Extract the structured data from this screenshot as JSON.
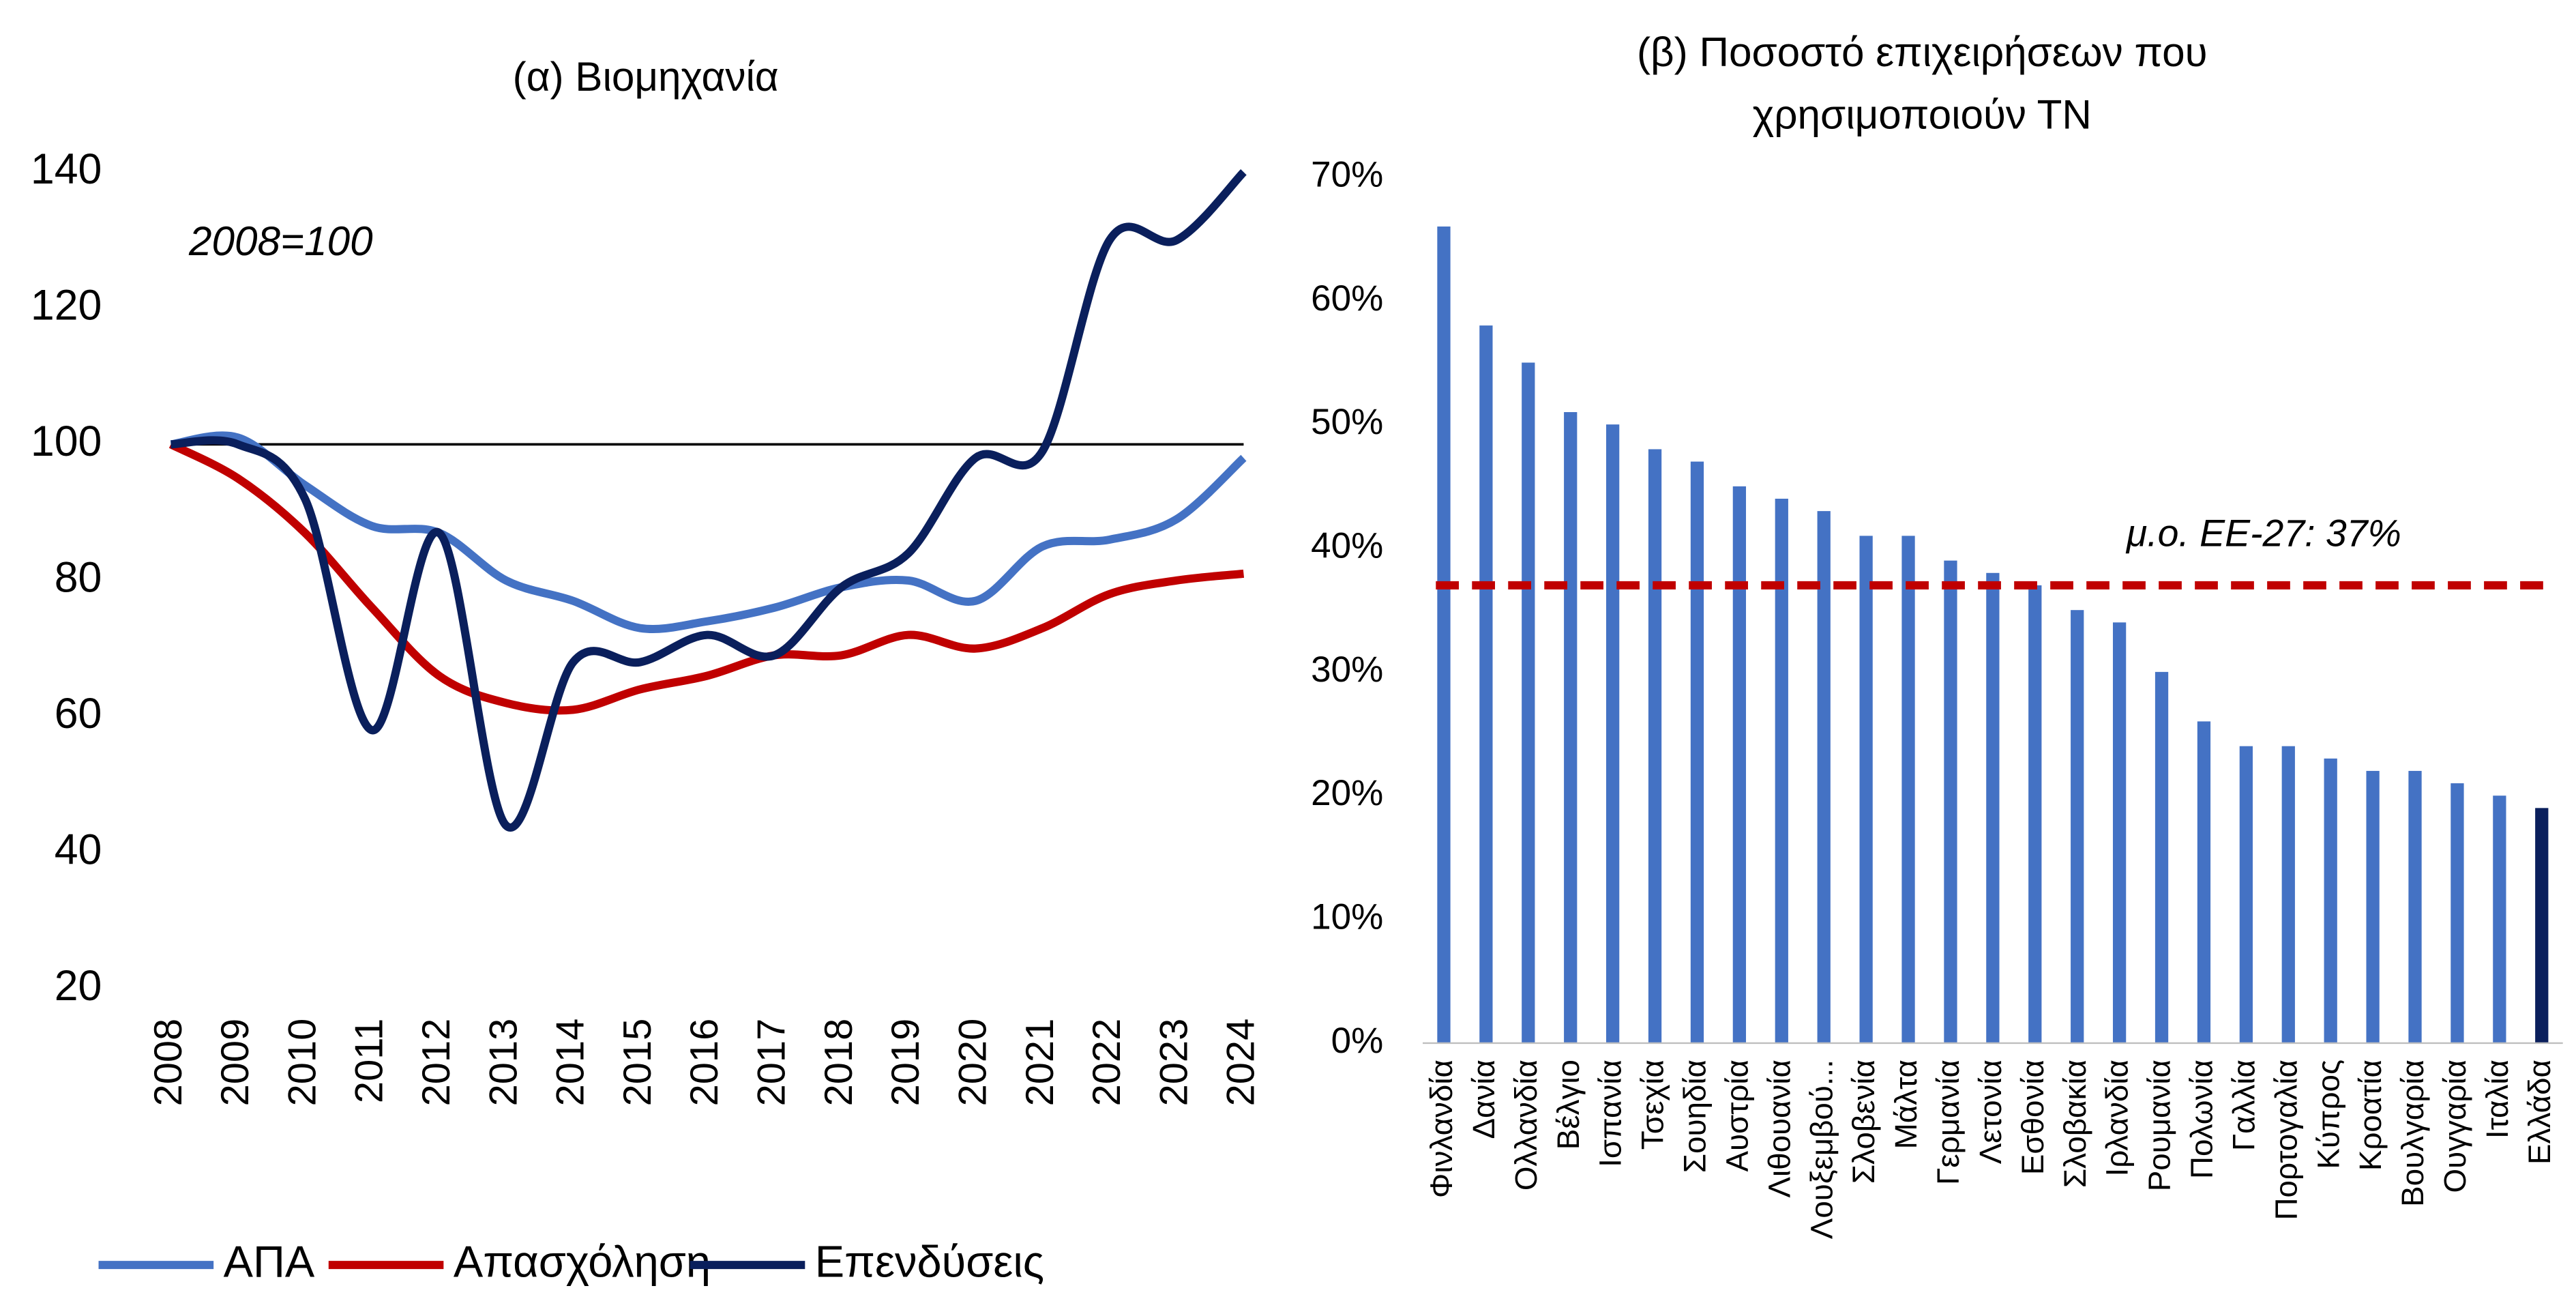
{
  "chart_data": [
    {
      "type": "line",
      "title": "(α) Βιομηχανία",
      "annotation": "2008=100",
      "categories": [
        "2008",
        "2009",
        "2010",
        "2011",
        "2012",
        "2013",
        "2014",
        "2015",
        "2016",
        "2017",
        "2018",
        "2019",
        "2020",
        "2021",
        "2022",
        "2023",
        "2024"
      ],
      "series": [
        {
          "name": "ΑΠΑ",
          "color": "#4472c4",
          "values": [
            100,
            101,
            94,
            88,
            87,
            80,
            77,
            73,
            74,
            76,
            79,
            80,
            77,
            85,
            86,
            89,
            98
          ]
        },
        {
          "name": "Απασχόληση",
          "color": "#c00000",
          "values": [
            100,
            95,
            87,
            76,
            66,
            62,
            61,
            64,
            66,
            69,
            69,
            72,
            70,
            73,
            78,
            80,
            81
          ]
        },
        {
          "name": "Επενδύσεις",
          "color": "#0a1f5c",
          "values": [
            100,
            100,
            92,
            58,
            87,
            44,
            68,
            68,
            72,
            69,
            79,
            84,
            98,
            99,
            130,
            130,
            140
          ]
        }
      ],
      "ylim": [
        20,
        140
      ],
      "yticks": [
        20,
        40,
        60,
        80,
        100,
        120,
        140
      ],
      "hline": 100,
      "legend": "bottom"
    },
    {
      "type": "bar",
      "title": [
        "(β) Ποσοστό επιχειρήσεων που",
        "χρησιμοποιούν ΤΝ"
      ],
      "categories": [
        "Φινλανδία",
        "Δανία",
        "Ολλανδία",
        "Βέλγιο",
        "Ισπανία",
        "Τσεχία",
        "Σουηδία",
        "Αυστρία",
        "Λιθουανία",
        "Λουξεμβού...",
        "Σλοβενία",
        "Μάλτα",
        "Γερμανία",
        "Λετονία",
        "Εσθονία",
        "Σλοβακία",
        "Ιρλανδία",
        "Ρουμανία",
        "Πολωνία",
        "Γαλλία",
        "Πορτογαλία",
        "Κύπρος",
        "Κροατία",
        "Βουλγαρία",
        "Ουγγαρία",
        "Ιταλία",
        "Ελλάδα"
      ],
      "values": [
        66,
        58,
        55,
        51,
        50,
        48,
        47,
        45,
        44,
        43,
        41,
        41,
        39,
        38,
        37,
        35,
        34,
        30,
        26,
        24,
        24,
        23,
        22,
        22,
        21,
        20,
        19
      ],
      "colors": [
        "#4472c4",
        "#4472c4",
        "#4472c4",
        "#4472c4",
        "#4472c4",
        "#4472c4",
        "#4472c4",
        "#4472c4",
        "#4472c4",
        "#4472c4",
        "#4472c4",
        "#4472c4",
        "#4472c4",
        "#4472c4",
        "#4472c4",
        "#4472c4",
        "#4472c4",
        "#4472c4",
        "#4472c4",
        "#4472c4",
        "#4472c4",
        "#4472c4",
        "#4472c4",
        "#4472c4",
        "#4472c4",
        "#4472c4",
        "#0a1f5c"
      ],
      "ylim": [
        0,
        70
      ],
      "yticks": [
        {
          "value": 0,
          "label": "0%"
        },
        {
          "value": 10,
          "label": "10%"
        },
        {
          "value": 20,
          "label": "20%"
        },
        {
          "value": 30,
          "label": "30%"
        },
        {
          "value": 40,
          "label": "40%"
        },
        {
          "value": 50,
          "label": "50%"
        },
        {
          "value": 60,
          "label": "60%"
        },
        {
          "value": 70,
          "label": "70%"
        }
      ],
      "average": {
        "value": 37,
        "label": "μ.ο. ΕΕ-27: 37%",
        "color": "#c00000"
      }
    }
  ]
}
